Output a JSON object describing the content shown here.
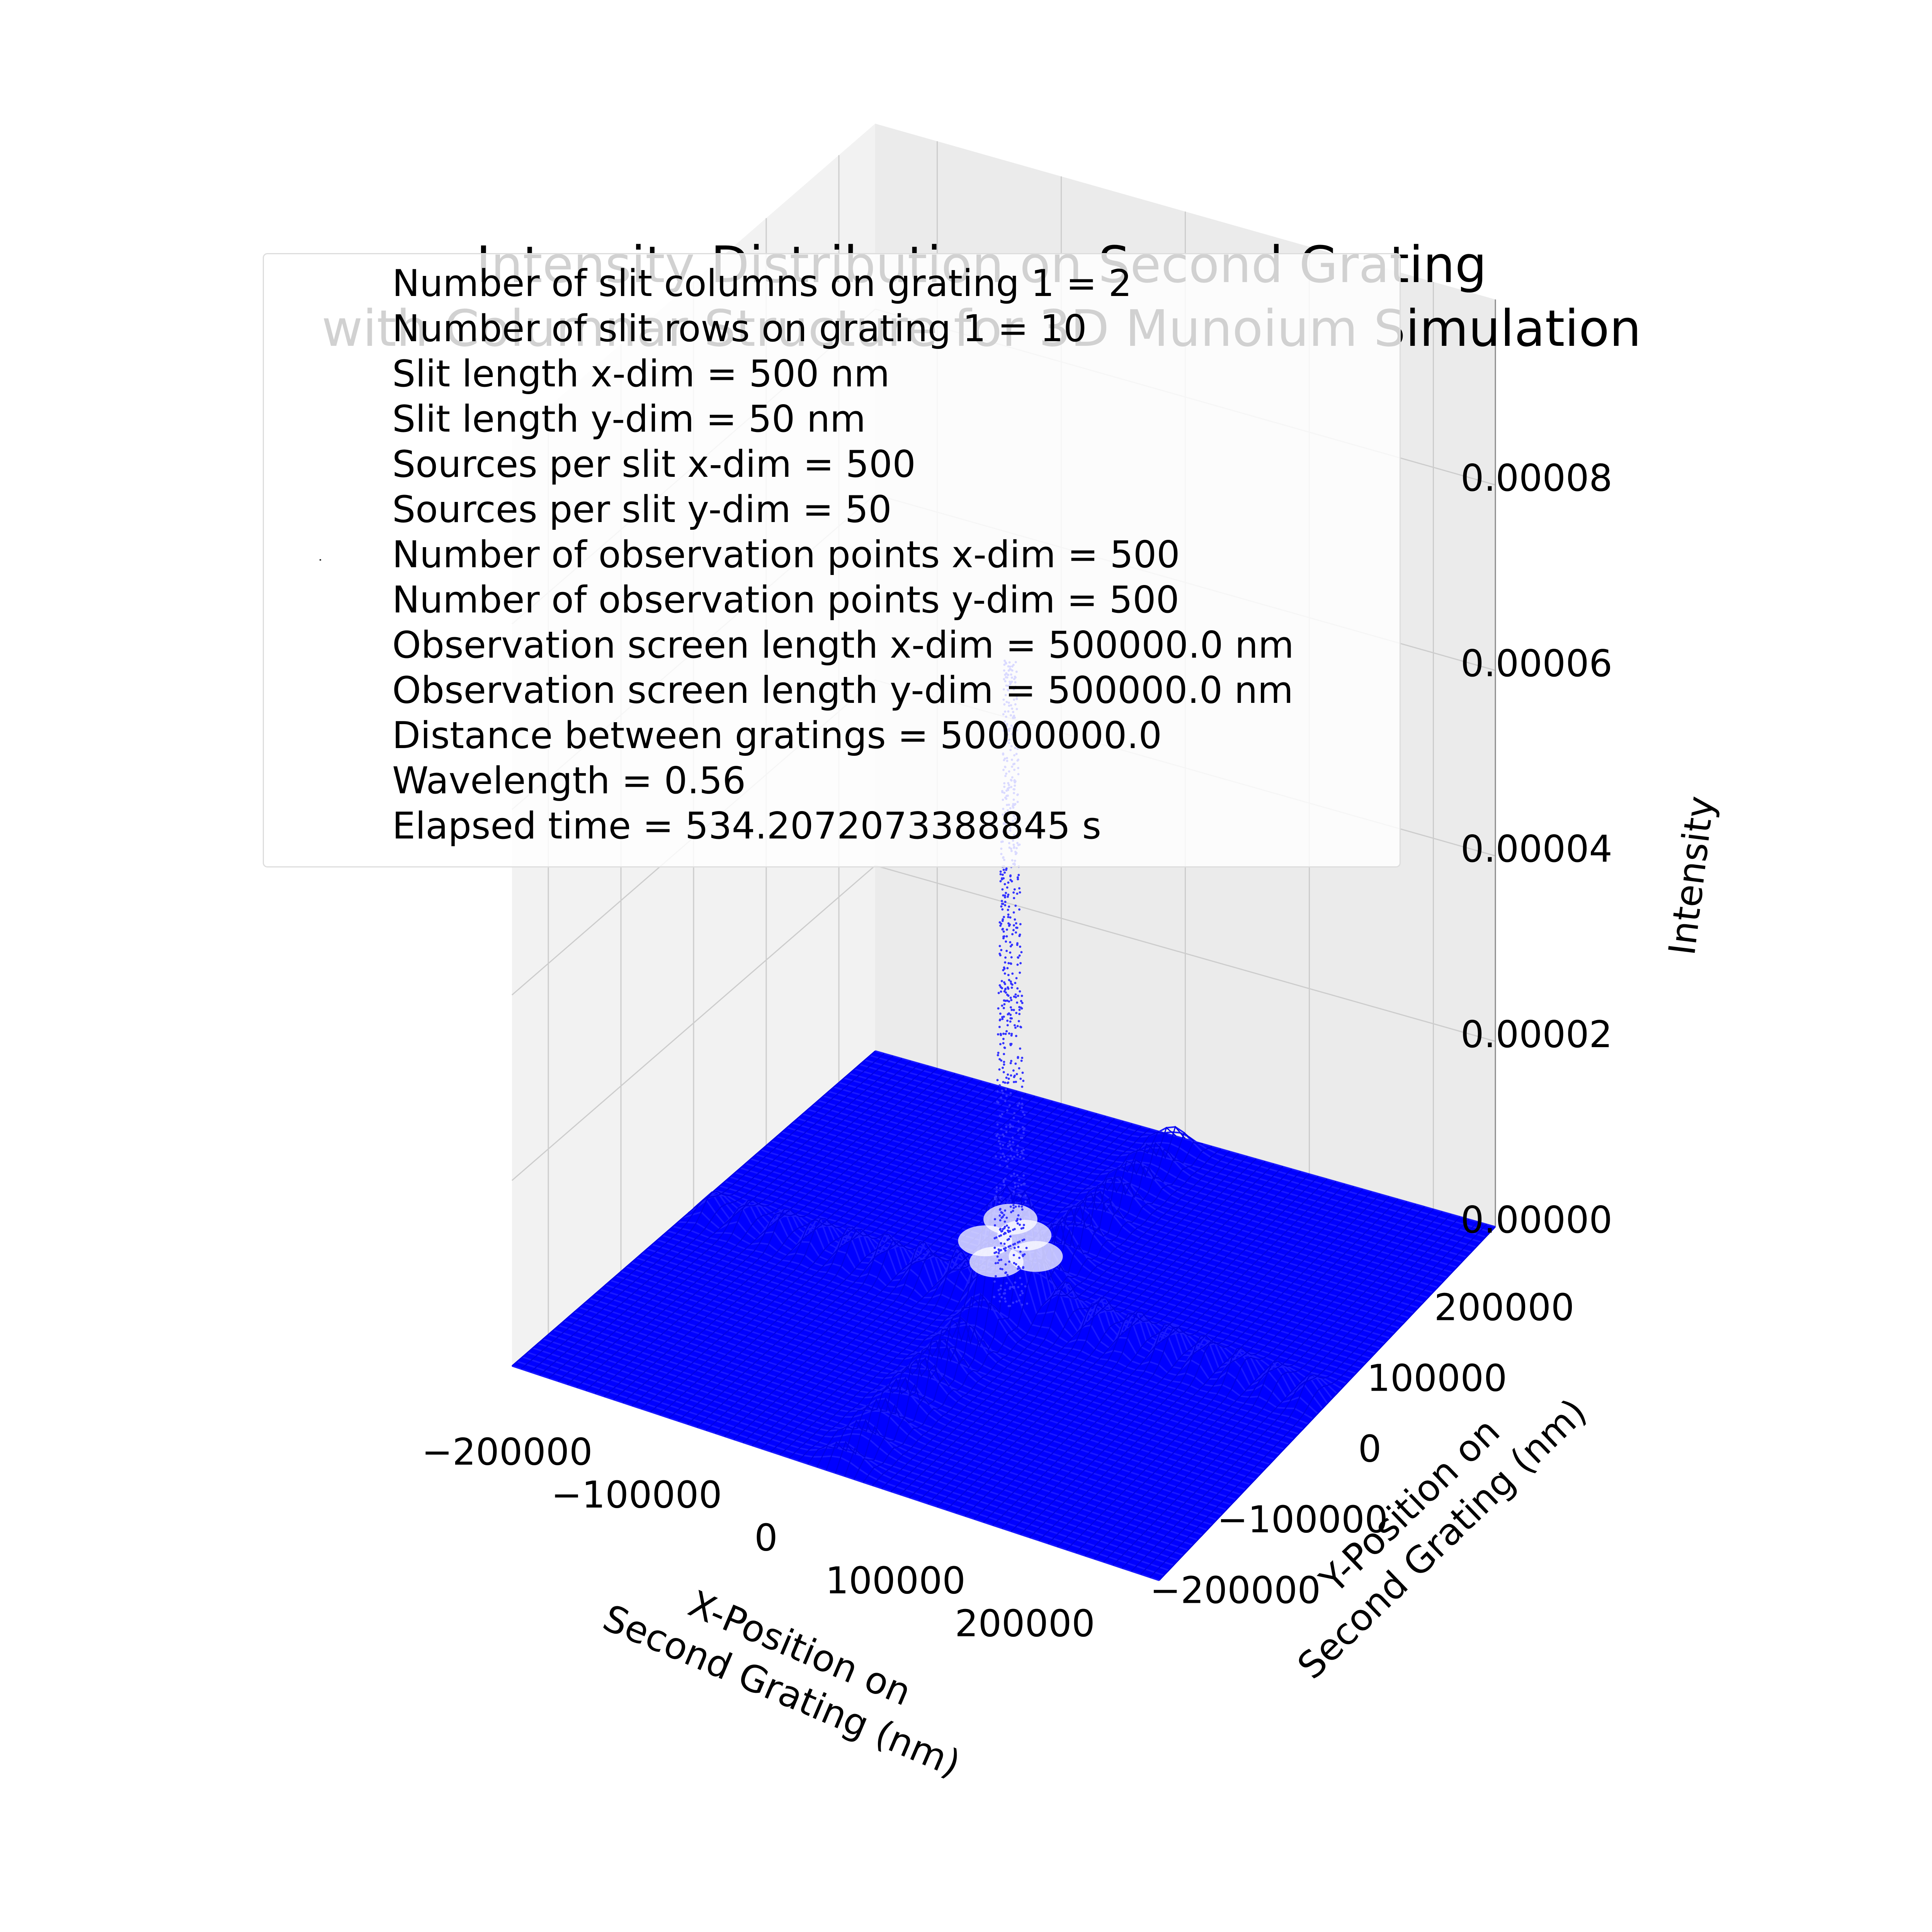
{
  "chart_data": {
    "type": "surface3d",
    "title": [
      "Intensity Distribution on Second Grating",
      "with Columnar Structure for 3D Munoium Simulation"
    ],
    "xlabel": [
      "X-Position on",
      "Second Grating (nm)"
    ],
    "ylabel": [
      "Y-Position on",
      "Second Grating (nm)"
    ],
    "zlabel": "Intensity",
    "x_ticks": [
      "−200000",
      "−100000",
      "0",
      "100000",
      "200000"
    ],
    "y_ticks": [
      "−200000",
      "−100000",
      "0",
      "100000",
      "200000"
    ],
    "z_ticks": [
      "0.00000",
      "0.00002",
      "0.00004",
      "0.00006",
      "0.00008"
    ],
    "xlim": [
      -250000,
      250000
    ],
    "ylim": [
      -250000,
      250000
    ],
    "zlim": [
      0,
      0.0001
    ],
    "surface_color": "#0000ff",
    "grid": true,
    "legend_placement": "upper-left",
    "legend_lines": [
      "Number of slit columns on grating 1 = 2",
      "Number of slit rows on grating 1 = 10",
      "Slit length x-dim = 500 nm",
      "Slit length y-dim = 50 nm",
      "Sources per slit x-dim = 500",
      "Sources per slit y-dim = 50",
      "Number of observation points x-dim = 500",
      "Number of observation points y-dim = 500",
      "Observation screen length x-dim = 500000.0 nm",
      "Observation screen length y-dim = 500000.0 nm",
      "Distance between gratings = 50000000.0",
      "Wavelength = 0.56",
      "Elapsed time = 534.2072073388845 s"
    ],
    "features": {
      "central_peak_intensity": 7e-05,
      "side_lobe_intensity": 8e-06,
      "ridge_count_each_direction": 9
    }
  }
}
